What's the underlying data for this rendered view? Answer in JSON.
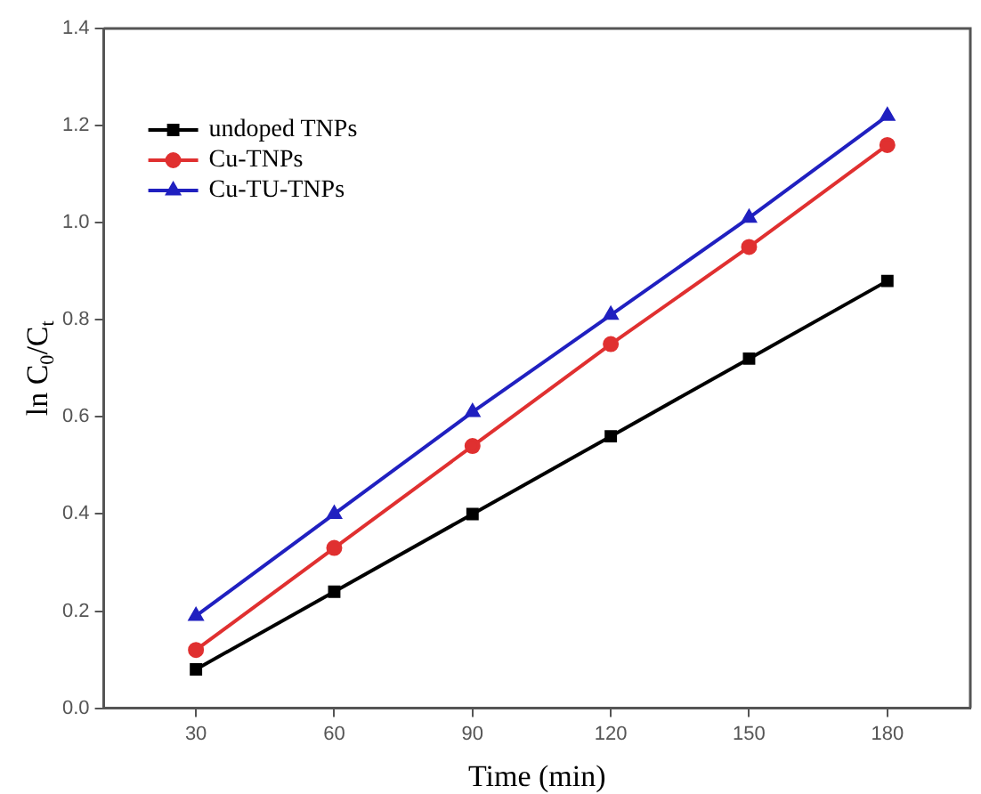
{
  "chart_data": {
    "type": "line",
    "xlabel": "Time (min)",
    "ylabel": "ln C$_{0}$/C$_{t}$",
    "x": [
      30,
      60,
      90,
      120,
      150,
      180
    ],
    "xlim": [
      10,
      198
    ],
    "xticks": [
      30,
      60,
      90,
      120,
      150,
      180
    ],
    "ylim": [
      0,
      1.4
    ],
    "yticks": [
      {
        "value": 0,
        "label": "0.0"
      },
      {
        "value": 0.2,
        "label": "0.2"
      },
      {
        "value": 0.4,
        "label": "0.4"
      },
      {
        "value": 0.6,
        "label": "0.6"
      },
      {
        "value": 0.8,
        "label": "0.8"
      },
      {
        "value": 1,
        "label": "1.0"
      },
      {
        "value": 1.2,
        "label": "1.2"
      },
      {
        "value": 1.4,
        "label": "1.4"
      }
    ],
    "grid": false,
    "legend": "top left",
    "line_style": "solid",
    "series": [
      {
        "name": "undoped TNPs",
        "color": "#000000",
        "marker": "square",
        "values": [
          0.08,
          0.24,
          0.4,
          0.56,
          0.72,
          0.88
        ]
      },
      {
        "name": "Cu-TNPs",
        "color": "#e03030",
        "marker": "circle",
        "values": [
          0.12,
          0.33,
          0.54,
          0.75,
          0.95,
          1.16
        ]
      },
      {
        "name": "Cu-TU-TNPs",
        "color": "#2020c0",
        "marker": "triangle",
        "values": [
          0.19,
          0.4,
          0.61,
          0.81,
          1.01,
          1.22
        ]
      }
    ]
  }
}
